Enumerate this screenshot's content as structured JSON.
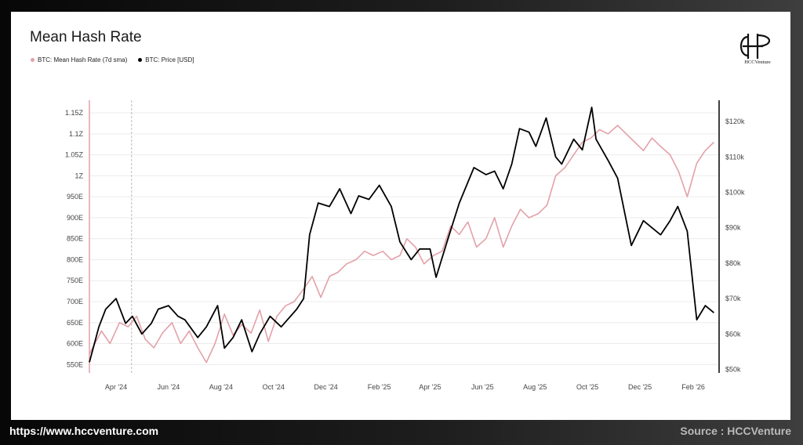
{
  "footer": {
    "website": "https://www.hccventure.com",
    "source": "Source : HCCVenture"
  },
  "logo": {
    "text": "HCCVenture"
  },
  "colors": {
    "hashrate": "#e3a1a9",
    "price": "#000000",
    "grid": "#ececec",
    "background": "#ffffff"
  },
  "chart_data": {
    "type": "line",
    "title": "Mean Hash Rate",
    "legend_position": "top-left",
    "grid": true,
    "x_labels": [
      "Apr '24",
      "Jun '24",
      "Aug '24",
      "Oct '24",
      "Dec '24",
      "Feb '25",
      "Apr '25",
      "Jun '25",
      "Aug '25",
      "Oct '25",
      "Dec '25",
      "Feb '26"
    ],
    "y_left": {
      "labels": [
        "550E",
        "600E",
        "650E",
        "700E",
        "750E",
        "800E",
        "850E",
        "900E",
        "950E",
        "1Z",
        "1.05Z",
        "1.1Z",
        "1.15Z"
      ],
      "values": [
        550,
        600,
        650,
        700,
        750,
        800,
        850,
        900,
        950,
        1000,
        1050,
        1100,
        1150
      ],
      "range": [
        530,
        1180
      ],
      "unit": "EH/s"
    },
    "y_right": {
      "labels": [
        "$50k",
        "$60k",
        "$70k",
        "$80k",
        "$90k",
        "$100k",
        "$110k",
        "$120k"
      ],
      "values": [
        50,
        60,
        70,
        80,
        90,
        100,
        110,
        120
      ],
      "range": [
        49,
        126
      ],
      "unit": "k USD"
    },
    "series": [
      {
        "name": "BTC: Mean Hash Rate (7d sma)",
        "axis": "left",
        "x": [
          "2024-03-01",
          "2024-03-15",
          "2024-03-25",
          "2024-04-05",
          "2024-04-15",
          "2024-04-25",
          "2024-05-05",
          "2024-05-15",
          "2024-05-25",
          "2024-06-05",
          "2024-06-15",
          "2024-06-25",
          "2024-07-05",
          "2024-07-15",
          "2024-07-25",
          "2024-08-05",
          "2024-08-15",
          "2024-08-25",
          "2024-09-05",
          "2024-09-15",
          "2024-09-25",
          "2024-10-05",
          "2024-10-15",
          "2024-10-25",
          "2024-11-05",
          "2024-11-15",
          "2024-11-25",
          "2024-12-05",
          "2024-12-15",
          "2024-12-25",
          "2025-01-05",
          "2025-01-15",
          "2025-01-25",
          "2025-02-05",
          "2025-02-15",
          "2025-02-25",
          "2025-03-05",
          "2025-03-15",
          "2025-03-25",
          "2025-04-05",
          "2025-04-15",
          "2025-04-25",
          "2025-05-05",
          "2025-05-15",
          "2025-05-25",
          "2025-06-05",
          "2025-06-15",
          "2025-06-25",
          "2025-07-05",
          "2025-07-15",
          "2025-07-25",
          "2025-08-05",
          "2025-08-15",
          "2025-08-25",
          "2025-09-05",
          "2025-09-15",
          "2025-09-25",
          "2025-10-05",
          "2025-10-15",
          "2025-10-25",
          "2025-11-05",
          "2025-11-15",
          "2025-11-25",
          "2025-12-05",
          "2025-12-15",
          "2025-12-25",
          "2026-01-05",
          "2026-01-15",
          "2026-01-25",
          "2026-02-05",
          "2026-02-15",
          "2026-02-25"
        ],
        "values": [
          575,
          630,
          600,
          650,
          640,
          665,
          610,
          590,
          625,
          650,
          600,
          630,
          590,
          555,
          600,
          670,
          620,
          645,
          625,
          680,
          605,
          665,
          690,
          700,
          730,
          760,
          710,
          760,
          770,
          790,
          800,
          820,
          810,
          820,
          800,
          810,
          850,
          830,
          790,
          810,
          820,
          880,
          860,
          890,
          830,
          850,
          900,
          830,
          880,
          920,
          900,
          910,
          930,
          1000,
          1020,
          1050,
          1080,
          1090,
          1110,
          1100,
          1120,
          1100,
          1080,
          1060,
          1090,
          1070,
          1050,
          1010,
          950,
          1030,
          1060,
          1080
        ]
      },
      {
        "name": "BTC: Price [USD]",
        "axis": "right",
        "x": [
          "2024-03-01",
          "2024-03-12",
          "2024-03-20",
          "2024-04-01",
          "2024-04-12",
          "2024-04-20",
          "2024-05-01",
          "2024-05-12",
          "2024-05-20",
          "2024-06-01",
          "2024-06-12",
          "2024-06-20",
          "2024-07-05",
          "2024-07-15",
          "2024-07-28",
          "2024-08-05",
          "2024-08-15",
          "2024-08-25",
          "2024-09-06",
          "2024-09-15",
          "2024-09-27",
          "2024-10-10",
          "2024-10-28",
          "2024-11-05",
          "2024-11-12",
          "2024-11-22",
          "2024-12-05",
          "2024-12-17",
          "2024-12-30",
          "2025-01-08",
          "2025-01-20",
          "2025-02-01",
          "2025-02-15",
          "2025-02-25",
          "2025-03-10",
          "2025-03-20",
          "2025-04-01",
          "2025-04-08",
          "2025-04-22",
          "2025-05-05",
          "2025-05-22",
          "2025-06-05",
          "2025-06-15",
          "2025-06-25",
          "2025-07-05",
          "2025-07-14",
          "2025-07-25",
          "2025-08-02",
          "2025-08-14",
          "2025-08-25",
          "2025-09-01",
          "2025-09-15",
          "2025-09-25",
          "2025-10-06",
          "2025-10-11",
          "2025-10-25",
          "2025-11-05",
          "2025-11-21",
          "2025-12-05",
          "2025-12-15",
          "2025-12-25",
          "2026-01-05",
          "2026-01-14",
          "2026-01-25",
          "2026-02-05",
          "2026-02-15",
          "2026-02-25"
        ],
        "values": [
          52,
          62,
          67,
          70,
          63,
          65,
          60,
          63,
          67,
          68,
          65,
          64,
          59,
          62,
          68,
          56,
          59,
          64,
          55,
          60,
          65,
          62,
          67,
          70,
          88,
          97,
          96,
          101,
          94,
          99,
          98,
          102,
          96,
          86,
          81,
          84,
          84,
          76,
          87,
          97,
          107,
          105,
          106,
          101,
          108,
          118,
          117,
          113,
          121,
          110,
          108,
          115,
          112,
          124,
          115,
          109,
          104,
          85,
          92,
          90,
          88,
          92,
          96,
          89,
          64,
          68,
          66
        ]
      }
    ]
  }
}
